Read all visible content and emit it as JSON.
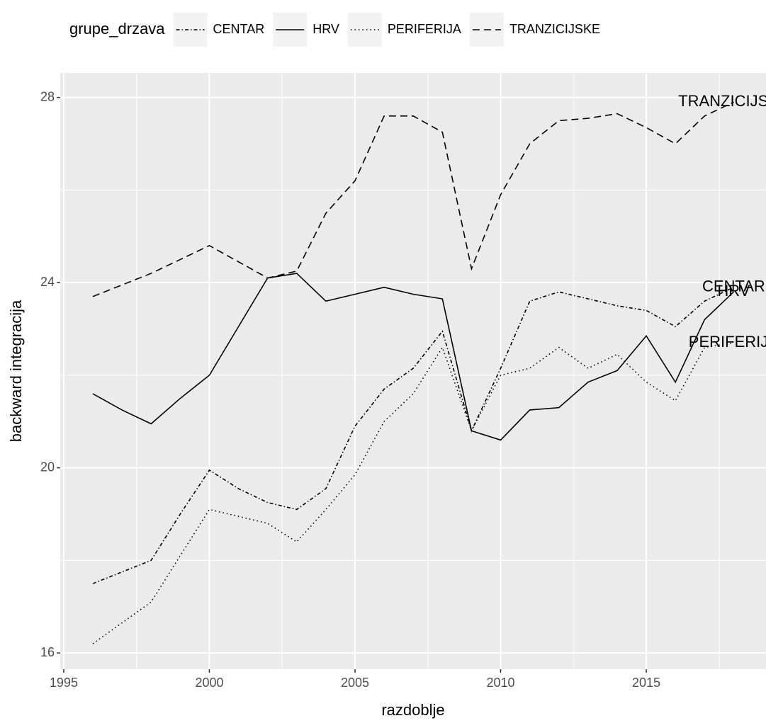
{
  "chart_data": {
    "type": "line",
    "x_label": "razdoblje",
    "y_label": "backward integracija",
    "legend_title": "grupe_drzava",
    "legend_position": "top",
    "x": [
      1996,
      1997,
      1998,
      1999,
      2000,
      2001,
      2002,
      2003,
      2004,
      2005,
      2006,
      2007,
      2008,
      2009,
      2010,
      2011,
      2012,
      2013,
      2014,
      2015,
      2016,
      2017,
      2018
    ],
    "series": [
      {
        "name": "CENTAR",
        "color": "#000000",
        "linetype": "dotdash",
        "values": [
          17.5,
          17.75,
          18.0,
          19.0,
          19.95,
          19.55,
          19.25,
          19.1,
          19.55,
          20.9,
          21.7,
          22.15,
          22.95,
          20.8,
          22.15,
          23.6,
          23.8,
          23.65,
          23.5,
          23.4,
          23.05,
          23.6,
          23.9
        ]
      },
      {
        "name": "HRV",
        "color": "#000000",
        "linetype": "solid",
        "values": [
          21.6,
          21.25,
          20.95,
          21.5,
          22.0,
          23.05,
          24.1,
          24.2,
          23.6,
          23.75,
          23.9,
          23.75,
          23.65,
          20.8,
          20.6,
          21.25,
          21.3,
          21.85,
          22.1,
          22.85,
          21.85,
          23.2,
          23.8
        ]
      },
      {
        "name": "PERIFERIJA",
        "color": "#000000",
        "linetype": "dotted",
        "values": [
          16.2,
          16.65,
          17.1,
          18.1,
          19.1,
          18.95,
          18.8,
          18.4,
          19.1,
          19.85,
          21.0,
          21.6,
          22.6,
          20.8,
          22.0,
          22.15,
          22.6,
          22.15,
          22.45,
          21.85,
          21.45,
          22.6,
          22.7
        ]
      },
      {
        "name": "TRANZICIJSKE",
        "color": "#000000",
        "linetype": "dashed",
        "values": [
          23.7,
          23.95,
          24.2,
          24.5,
          24.8,
          24.45,
          24.1,
          24.25,
          25.5,
          26.2,
          27.6,
          27.6,
          27.25,
          24.3,
          25.9,
          27.0,
          27.5,
          27.55,
          27.65,
          27.35,
          27.0,
          27.6,
          27.9
        ]
      }
    ],
    "end_labels": true,
    "xlim": [
      1994.88,
      2019.11
    ],
    "ylim": [
      15.65,
      28.53
    ],
    "xticks": [
      1995,
      2000,
      2005,
      2010,
      2015
    ],
    "yticks": [
      16,
      20,
      24,
      28
    ],
    "x_minor_ticks": [
      1997.5,
      2002.5,
      2007.5,
      2012.5,
      2017.5
    ],
    "y_minor_ticks": [
      18,
      22,
      26
    ],
    "grid": true,
    "panel_color": "#ebebeb"
  }
}
